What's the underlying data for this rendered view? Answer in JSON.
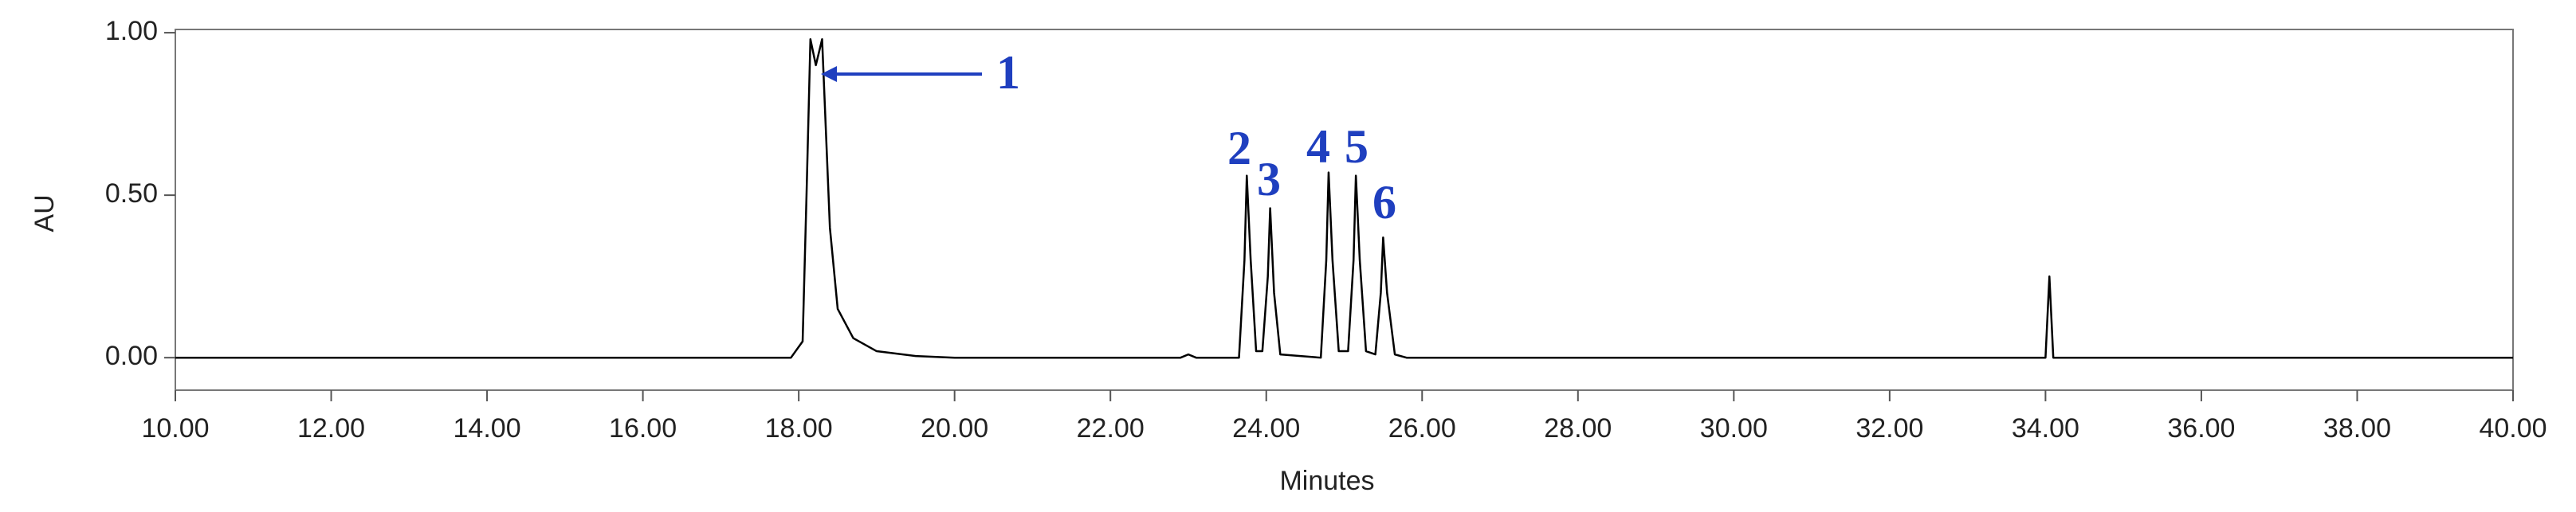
{
  "chart_data": {
    "type": "line",
    "xlabel": "Minutes",
    "ylabel": "AU",
    "x": [
      10,
      17.9,
      18.05,
      18.1,
      18.15,
      18.22,
      18.3,
      18.4,
      18.5,
      18.7,
      19.0,
      19.5,
      20,
      22.9,
      23.0,
      23.1,
      23.65,
      23.72,
      23.75,
      23.8,
      23.87,
      23.95,
      24.02,
      24.05,
      24.1,
      24.18,
      24.7,
      24.77,
      24.8,
      24.85,
      24.93,
      25.05,
      25.12,
      25.15,
      25.2,
      25.28,
      25.4,
      25.47,
      25.5,
      25.55,
      25.65,
      25.8,
      34.0,
      34.05,
      34.1,
      40
    ],
    "series": [
      {
        "color": "#000000",
        "values": [
          0,
          0,
          0.05,
          0.5,
          0.98,
          0.9,
          0.98,
          0.4,
          0.15,
          0.06,
          0.02,
          0.005,
          0,
          0,
          0.01,
          0,
          0,
          0.3,
          0.56,
          0.3,
          0.02,
          0.02,
          0.25,
          0.46,
          0.2,
          0.01,
          0,
          0.3,
          0.57,
          0.3,
          0.02,
          0.02,
          0.3,
          0.56,
          0.3,
          0.02,
          0.01,
          0.2,
          0.37,
          0.2,
          0.01,
          0,
          0,
          0.25,
          0,
          0
        ]
      }
    ],
    "xlim": [
      10,
      40
    ],
    "ylim": [
      -0.1,
      1.01
    ],
    "xticks": [
      {
        "value": 10,
        "label": "10.00"
      },
      {
        "value": 12,
        "label": "12.00"
      },
      {
        "value": 14,
        "label": "14.00"
      },
      {
        "value": 16,
        "label": "16.00"
      },
      {
        "value": 18,
        "label": "18.00"
      },
      {
        "value": 20,
        "label": "20.00"
      },
      {
        "value": 22,
        "label": "22.00"
      },
      {
        "value": 24,
        "label": "24.00"
      },
      {
        "value": 26,
        "label": "26.00"
      },
      {
        "value": 28,
        "label": "28.00"
      },
      {
        "value": 30,
        "label": "30.00"
      },
      {
        "value": 32,
        "label": "32.00"
      },
      {
        "value": 34,
        "label": "34.00"
      },
      {
        "value": 36,
        "label": "36.00"
      },
      {
        "value": 38,
        "label": "38.00"
      },
      {
        "value": 40,
        "label": "40.00"
      }
    ],
    "yticks": [
      {
        "value": 0,
        "label": "0.00"
      },
      {
        "value": 0.5,
        "label": "0.50"
      },
      {
        "value": 1,
        "label": "1.00"
      }
    ],
    "annotations": [
      "1",
      "2",
      "3",
      "4",
      "5",
      "6"
    ],
    "annotation_color": "#1f3fbf"
  }
}
